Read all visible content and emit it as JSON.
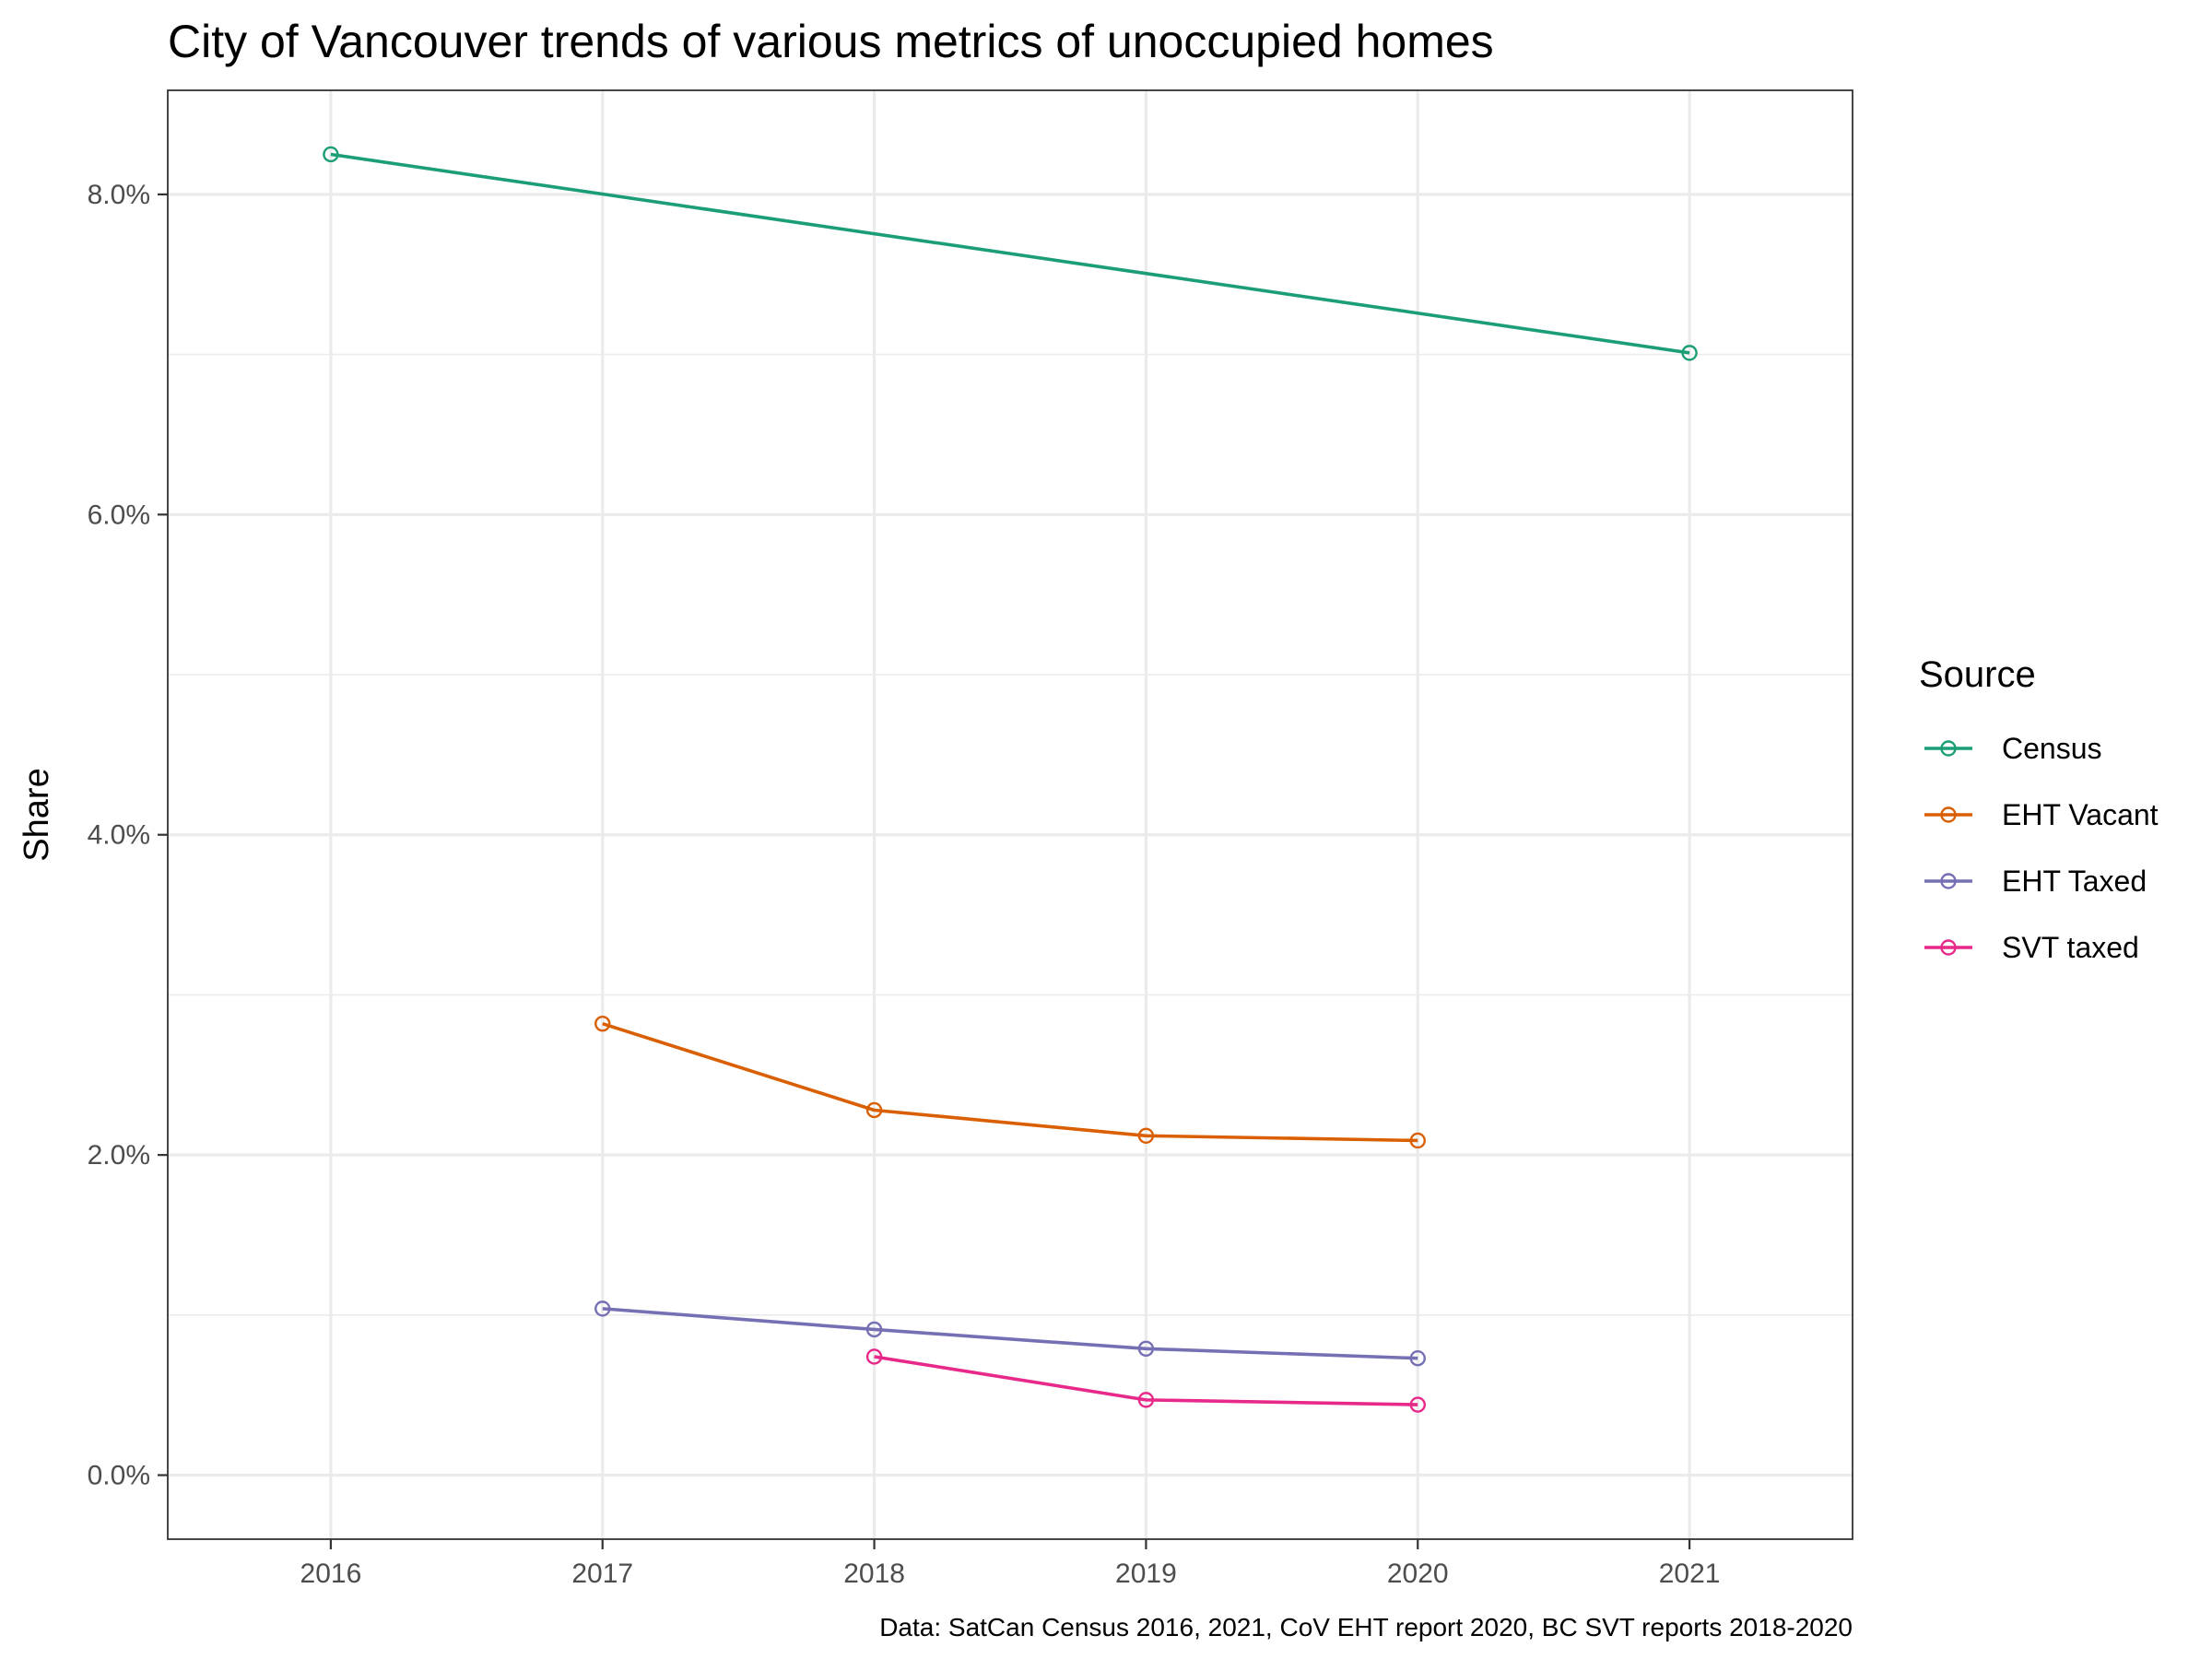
{
  "chart_data": {
    "type": "line",
    "title": "City of Vancouver trends of various metrics of unoccupied homes",
    "xlabel": "",
    "ylabel": "Share",
    "caption": "Data: SatCan Census 2016, 2021, CoV EHT report 2020, BC SVT reports 2018-2020",
    "x_ticks": [
      "2016",
      "2017",
      "2018",
      "2019",
      "2020",
      "2021"
    ],
    "y_ticks": [
      "0.0%",
      "2.0%",
      "4.0%",
      "6.0%",
      "8.0%"
    ],
    "xlim": [
      2015.4,
      2021.6
    ],
    "ylim": [
      -0.004,
      0.0865
    ],
    "y_tick_values": [
      0,
      0.02,
      0.04,
      0.06,
      0.08
    ],
    "y_minor_values": [
      0.01,
      0.03,
      0.05,
      0.07
    ],
    "grid": true,
    "legend": {
      "title": "Source",
      "position": "right"
    },
    "series": [
      {
        "name": "Census",
        "color": "#1b9e77",
        "points": [
          [
            2016,
            0.0825
          ],
          [
            2021,
            0.0701
          ]
        ]
      },
      {
        "name": "EHT Vacant",
        "color": "#d95f02",
        "points": [
          [
            2017,
            0.0282
          ],
          [
            2018,
            0.0228
          ],
          [
            2019,
            0.0212
          ],
          [
            2020,
            0.0209
          ]
        ]
      },
      {
        "name": "EHT Taxed",
        "color": "#7570b3",
        "points": [
          [
            2017,
            0.0104
          ],
          [
            2018,
            0.0091
          ],
          [
            2019,
            0.0079
          ],
          [
            2020,
            0.0073
          ]
        ]
      },
      {
        "name": "SVT taxed",
        "color": "#e7298a",
        "points": [
          [
            2018,
            0.0074
          ],
          [
            2019,
            0.0047
          ],
          [
            2020,
            0.0044
          ]
        ]
      }
    ]
  }
}
